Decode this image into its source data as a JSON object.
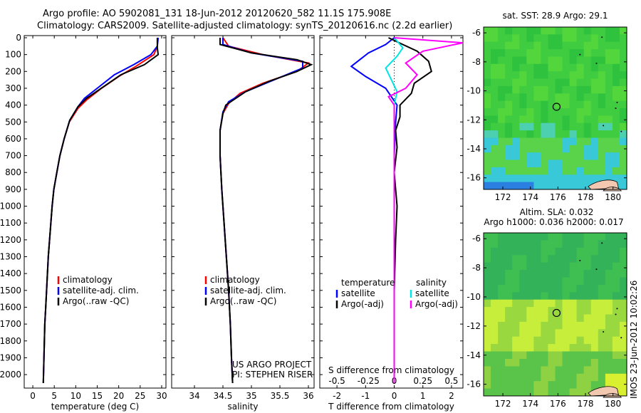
{
  "title": {
    "line1": "Argo profile: AO 5902081_131 18-Jun-2012 20120620_582 11.1S 175.908E",
    "line2": "Climatology: CARS2009. Satellite-adjusted climatology: synTS_20120616.nc (2.2d earlier)"
  },
  "footer": {
    "project": "US ARGO PROJECT",
    "pi": "PI: STEPHEN RISER",
    "timestamp": "IMOS 23-Jun-2012 10:02:26"
  },
  "colors": {
    "climatology": "#ff0000",
    "satellite": "#0000ff",
    "argo": "#000000",
    "sal_satellite": "#00e5e5",
    "sal_argo": "#ff00ff",
    "map_green": "#33cc33",
    "map_blue": "#33bbee"
  },
  "chart_data": [
    {
      "type": "line",
      "name": "temperature-profile",
      "xlabel": "temperature (deg C)",
      "ylabel": "",
      "xlim": [
        -2,
        31
      ],
      "ylim": [
        2080,
        0
      ],
      "xticks": [
        0,
        5,
        10,
        15,
        20,
        25,
        30
      ],
      "yticks": [
        0,
        100,
        200,
        300,
        400,
        500,
        600,
        700,
        800,
        900,
        1000,
        1100,
        1200,
        1300,
        1400,
        1500,
        1600,
        1700,
        1800,
        1900,
        2000
      ],
      "legend": [
        "climatology",
        "satellite-adj. clim.",
        "Argo(..raw -QC)"
      ],
      "series": [
        {
          "name": "climatology",
          "color": "#ff0000",
          "points": [
            [
              29.1,
              0
            ],
            [
              29.0,
              50
            ],
            [
              28.2,
              100
            ],
            [
              24,
              170
            ],
            [
              20,
              230
            ],
            [
              16,
              300
            ],
            [
              12.5,
              370
            ],
            [
              10.5,
              420
            ],
            [
              8.5,
              500
            ],
            [
              7.3,
              600
            ],
            [
              6.3,
              700
            ],
            [
              5.6,
              800
            ],
            [
              4.9,
              900
            ],
            [
              4.5,
              1000
            ],
            [
              4.2,
              1100
            ],
            [
              3.9,
              1200
            ],
            [
              3.6,
              1300
            ],
            [
              3.4,
              1400
            ],
            [
              3.2,
              1500
            ],
            [
              3.0,
              1600
            ],
            [
              2.8,
              1700
            ],
            [
              2.7,
              1800
            ],
            [
              2.6,
              1900
            ],
            [
              2.5,
              2000
            ],
            [
              2.45,
              2050
            ]
          ]
        },
        {
          "name": "satellite-adj. clim.",
          "color": "#0000ff",
          "points": [
            [
              29.2,
              0
            ],
            [
              29.0,
              50
            ],
            [
              27.5,
              100
            ],
            [
              23.5,
              160
            ],
            [
              19,
              220
            ],
            [
              15.5,
              290
            ],
            [
              12,
              360
            ],
            [
              10.5,
              410
            ],
            [
              8.6,
              490
            ],
            [
              7.3,
              600
            ],
            [
              6.3,
              700
            ],
            [
              5.6,
              800
            ],
            [
              4.9,
              900
            ],
            [
              4.5,
              1000
            ],
            [
              4.2,
              1100
            ],
            [
              3.9,
              1200
            ],
            [
              3.6,
              1300
            ],
            [
              3.4,
              1400
            ],
            [
              3.2,
              1500
            ],
            [
              3.0,
              1600
            ],
            [
              2.8,
              1700
            ],
            [
              2.7,
              1800
            ],
            [
              2.6,
              1900
            ],
            [
              2.5,
              2000
            ],
            [
              2.45,
              2050
            ]
          ]
        },
        {
          "name": "Argo(..raw -QC)",
          "color": "#000000",
          "points": [
            [
              29.0,
              0
            ],
            [
              29.0,
              60
            ],
            [
              29.2,
              100
            ],
            [
              26,
              160
            ],
            [
              20.5,
              220
            ],
            [
              16.5,
              290
            ],
            [
              12.5,
              360
            ],
            [
              10.5,
              410
            ],
            [
              8.6,
              490
            ],
            [
              7.3,
              600
            ],
            [
              6.3,
              700
            ],
            [
              5.6,
              800
            ],
            [
              4.9,
              900
            ],
            [
              4.5,
              1000
            ],
            [
              4.2,
              1100
            ],
            [
              3.9,
              1200
            ],
            [
              3.6,
              1300
            ],
            [
              3.4,
              1400
            ],
            [
              3.2,
              1500
            ],
            [
              3.0,
              1600
            ],
            [
              2.8,
              1700
            ],
            [
              2.7,
              1800
            ],
            [
              2.6,
              1900
            ],
            [
              2.5,
              2000
            ],
            [
              2.45,
              2050
            ]
          ]
        }
      ]
    },
    {
      "type": "line",
      "name": "salinity-profile",
      "xlabel": "salinity",
      "ylabel": "",
      "xlim": [
        33.6,
        36.1
      ],
      "ylim": [
        2080,
        0
      ],
      "xticks": [
        34,
        34.5,
        35,
        35.5,
        36
      ],
      "legend": [
        "climatology",
        "satellite-adj. clim.",
        "Argo(..raw -QC)"
      ],
      "series": [
        {
          "name": "climatology",
          "color": "#ff0000",
          "points": [
            [
              34.5,
              0
            ],
            [
              34.6,
              50
            ],
            [
              35.2,
              100
            ],
            [
              36.0,
              150
            ],
            [
              35.8,
              200
            ],
            [
              35.2,
              270
            ],
            [
              34.8,
              330
            ],
            [
              34.6,
              390
            ],
            [
              34.5,
              450
            ],
            [
              34.45,
              550
            ],
            [
              34.45,
              700
            ],
            [
              34.48,
              900
            ],
            [
              34.52,
              1100
            ],
            [
              34.56,
              1300
            ],
            [
              34.6,
              1500
            ],
            [
              34.63,
              1700
            ],
            [
              34.65,
              1900
            ],
            [
              34.67,
              2050
            ]
          ]
        },
        {
          "name": "satellite-adj. clim.",
          "color": "#0000ff",
          "points": [
            [
              34.5,
              0
            ],
            [
              34.5,
              40
            ],
            [
              35.0,
              90
            ],
            [
              35.9,
              140
            ],
            [
              35.9,
              180
            ],
            [
              35.4,
              250
            ],
            [
              34.9,
              320
            ],
            [
              34.6,
              380
            ],
            [
              34.5,
              440
            ],
            [
              34.45,
              550
            ],
            [
              34.45,
              700
            ],
            [
              34.48,
              900
            ],
            [
              34.52,
              1100
            ],
            [
              34.56,
              1300
            ],
            [
              34.6,
              1500
            ],
            [
              34.63,
              1700
            ],
            [
              34.65,
              1900
            ],
            [
              34.67,
              2050
            ]
          ]
        },
        {
          "name": "Argo(..raw -QC)",
          "color": "#000000",
          "points": [
            [
              34.45,
              0
            ],
            [
              34.45,
              40
            ],
            [
              35.0,
              90
            ],
            [
              35.8,
              130
            ],
            [
              36.05,
              160
            ],
            [
              35.8,
              200
            ],
            [
              35.3,
              260
            ],
            [
              34.9,
              320
            ],
            [
              34.55,
              400
            ],
            [
              34.5,
              450
            ],
            [
              34.45,
              550
            ],
            [
              34.45,
              700
            ],
            [
              34.48,
              900
            ],
            [
              34.52,
              1100
            ],
            [
              34.56,
              1300
            ],
            [
              34.6,
              1500
            ],
            [
              34.63,
              1700
            ],
            [
              34.65,
              1900
            ],
            [
              34.67,
              2050
            ]
          ]
        }
      ]
    },
    {
      "type": "line",
      "name": "difference-profile",
      "xlabel": "T difference from climatology",
      "xlabel_top": "S difference from climatology",
      "xlim": [
        -2.6,
        2.4
      ],
      "ylim": [
        2080,
        0
      ],
      "xticks": [
        -2,
        -1,
        0,
        1,
        2
      ],
      "xticks_top": [
        -0.5,
        -0.25,
        0,
        0.25,
        0.5
      ],
      "legend_groups": [
        "temperature",
        "salinity"
      ],
      "legend": [
        "satellite",
        "Argo(-adj)",
        "satellite",
        "Argo(-adj)"
      ],
      "series": [
        {
          "name": "satellite",
          "group": "temperature",
          "color": "#0000ff",
          "points": [
            [
              0,
              0
            ],
            [
              -0.3,
              40
            ],
            [
              -0.9,
              90
            ],
            [
              -1.5,
              170
            ],
            [
              -1.0,
              230
            ],
            [
              -0.3,
              300
            ],
            [
              0.1,
              400
            ],
            [
              0.05,
              500
            ],
            [
              0,
              700
            ],
            [
              0,
              1000
            ],
            [
              0,
              2050
            ]
          ]
        },
        {
          "name": "Argo(-adj)",
          "group": "temperature",
          "color": "#000000",
          "points": [
            [
              -0.2,
              0
            ],
            [
              0.3,
              40
            ],
            [
              0.8,
              80
            ],
            [
              1.2,
              140
            ],
            [
              1.3,
              200
            ],
            [
              0.7,
              270
            ],
            [
              0.6,
              330
            ],
            [
              0.2,
              400
            ],
            [
              0.2,
              470
            ],
            [
              0.05,
              550
            ],
            [
              0.1,
              650
            ],
            [
              0,
              800
            ],
            [
              0.1,
              1000
            ],
            [
              0.05,
              1200
            ],
            [
              0,
              1500
            ],
            [
              0,
              2050
            ]
          ]
        },
        {
          "name": "satellite",
          "group": "salinity",
          "color": "#00e5e5",
          "points": [
            [
              0,
              0
            ],
            [
              0.3,
              60
            ],
            [
              0.1,
              110
            ],
            [
              -0.3,
              180
            ],
            [
              -0.1,
              250
            ],
            [
              0.1,
              320
            ],
            [
              0,
              400
            ],
            [
              0,
              600
            ],
            [
              0,
              1000
            ],
            [
              0,
              2050
            ]
          ]
        },
        {
          "name": "Argo(-adj)",
          "group": "salinity",
          "color": "#ff00ff",
          "points": [
            [
              0,
              0
            ],
            [
              2.4,
              30
            ],
            [
              1.0,
              80
            ],
            [
              0.4,
              150
            ],
            [
              0.8,
              220
            ],
            [
              0.4,
              300
            ],
            [
              -0.2,
              350
            ],
            [
              0,
              400
            ],
            [
              0,
              600
            ],
            [
              0,
              1000
            ],
            [
              0,
              2050
            ]
          ]
        }
      ]
    },
    {
      "type": "heatmap",
      "name": "sst-map",
      "title": "sat. SST: 28.9 Argo: 29.1",
      "xlim": [
        170.6,
        181.0
      ],
      "ylim": [
        -16.8,
        -5.6
      ],
      "xticks": [
        172,
        174,
        176,
        178,
        180
      ],
      "yticks": [
        -6,
        -8,
        -10,
        -12,
        -14,
        -16
      ],
      "marker": [
        175.9,
        -11.1
      ]
    },
    {
      "type": "heatmap",
      "name": "sla-map",
      "title": "Altim. SLA: 0.032",
      "subtitle": "Argo h1000: 0.036 h2000: 0.017",
      "xlim": [
        170.6,
        181.0
      ],
      "ylim": [
        -16.8,
        -5.6
      ],
      "xticks": [
        172,
        174,
        176,
        178,
        180
      ],
      "yticks": [
        -6,
        -8,
        -10,
        -12,
        -14,
        -16
      ],
      "marker": [
        175.9,
        -11.1
      ]
    }
  ]
}
